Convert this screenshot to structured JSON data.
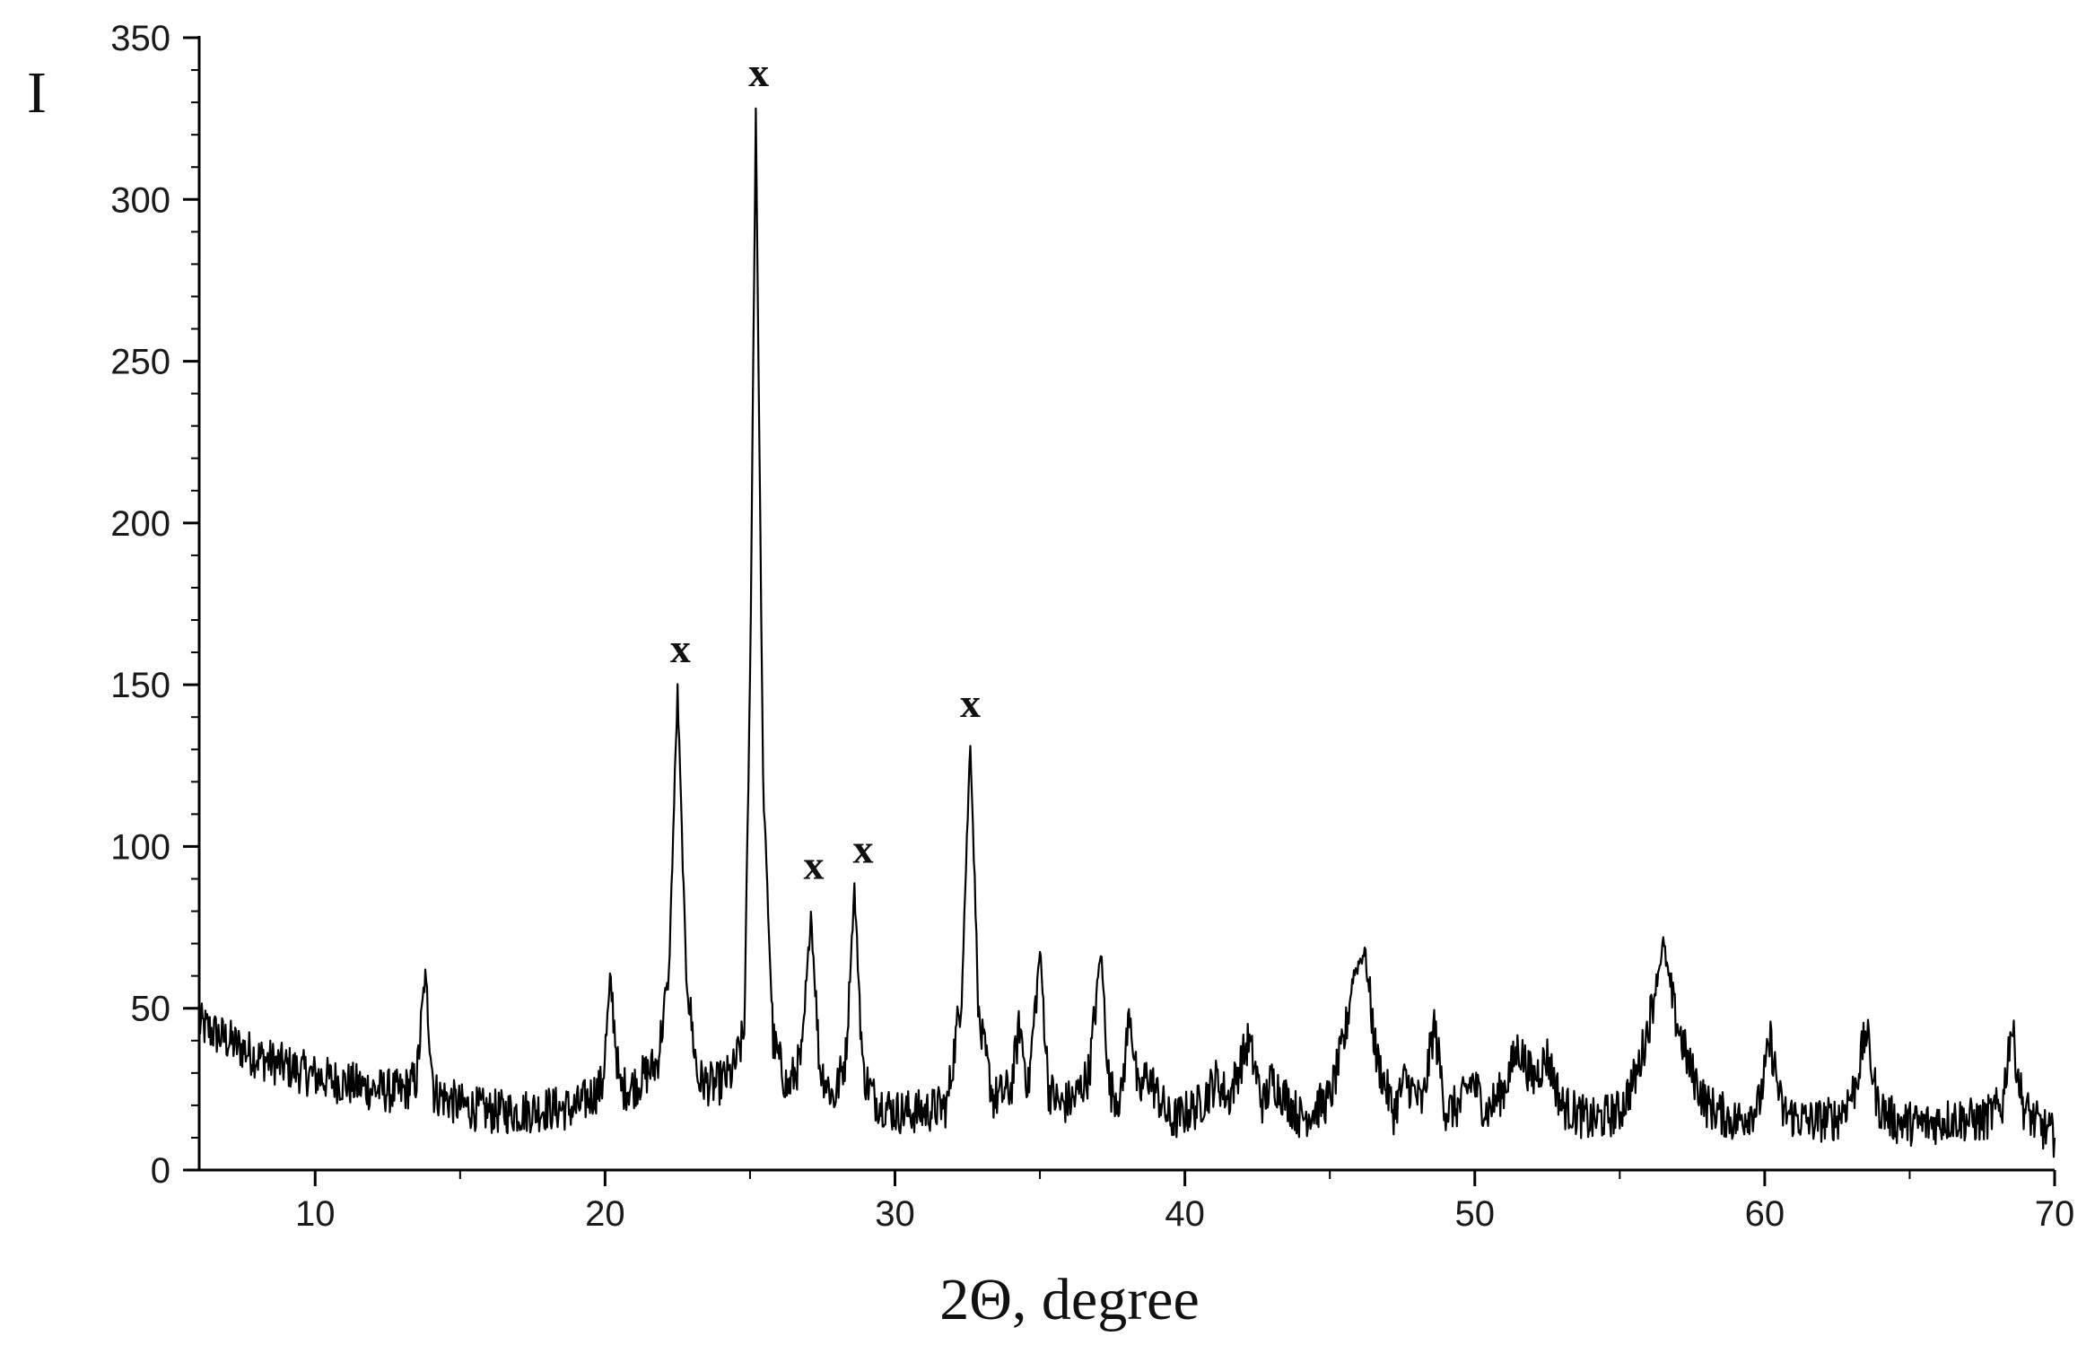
{
  "chart_data": {
    "type": "line",
    "title": "",
    "xlabel": "2Θ, degree",
    "ylabel": "I",
    "xlim": [
      6,
      70
    ],
    "ylim": [
      0,
      350
    ],
    "x_ticks": [
      10,
      20,
      30,
      40,
      50,
      60,
      70
    ],
    "x_tick_labels": [
      "10",
      "20",
      "30",
      "40",
      "50",
      "60",
      "70"
    ],
    "y_ticks": [
      0,
      50,
      100,
      150,
      200,
      250,
      300,
      350
    ],
    "y_tick_labels": [
      "0",
      "50",
      "100",
      "150",
      "200",
      "250",
      "300",
      "350"
    ],
    "grid": false,
    "legend": "none",
    "line_color": "#000000",
    "series": [
      {
        "x": [
          6.0,
          7.0,
          8.0,
          9.0,
          10.0,
          11.0,
          12.0,
          13.0,
          13.5,
          13.8,
          14.1,
          15.0,
          16.0,
          17.0,
          18.0,
          19.0,
          19.9,
          20.2,
          20.5,
          21.0,
          21.8,
          22.2,
          22.5,
          22.8,
          23.2,
          23.8,
          24.4,
          24.8,
          25.0,
          25.2,
          25.45,
          25.8,
          26.3,
          26.8,
          27.1,
          27.4,
          27.9,
          28.3,
          28.6,
          28.9,
          29.3,
          30.0,
          31.0,
          31.8,
          32.3,
          32.6,
          32.9,
          33.4,
          34.0,
          34.3,
          34.6,
          35.0,
          35.3,
          35.7,
          36.2,
          36.7,
          37.1,
          37.4,
          37.8,
          38.1,
          38.4,
          38.7,
          39.5,
          40.5,
          41.1,
          41.5,
          42.2,
          42.7,
          43.0,
          44.0,
          45.0,
          45.5,
          45.8,
          46.2,
          46.6,
          47.2,
          47.6,
          48.2,
          48.6,
          49.0,
          49.5,
          49.9,
          50.4,
          51.0,
          51.5,
          52.0,
          52.5,
          53.0,
          54.0,
          55.0,
          55.6,
          56.0,
          56.5,
          56.9,
          57.4,
          58.0,
          59.0,
          59.8,
          60.2,
          60.6,
          61.5,
          62.5,
          63.1,
          63.5,
          63.9,
          64.5,
          65.5,
          66.5,
          67.5,
          68.2,
          68.5,
          68.9,
          69.3,
          70.0
        ],
        "y": [
          45,
          40,
          35,
          32,
          29,
          27,
          25,
          24,
          28,
          60,
          24,
          20,
          18,
          18,
          19,
          19,
          26,
          58,
          25,
          26,
          33,
          60,
          148,
          60,
          28,
          26,
          30,
          42,
          150,
          328,
          120,
          40,
          25,
          35,
          80,
          32,
          22,
          35,
          87,
          30,
          22,
          18,
          18,
          20,
          55,
          133,
          45,
          22,
          25,
          45,
          25,
          68,
          25,
          20,
          22,
          30,
          68,
          25,
          22,
          50,
          22,
          30,
          15,
          20,
          28,
          22,
          40,
          20,
          28,
          16,
          22,
          40,
          60,
          68,
          35,
          18,
          28,
          20,
          45,
          18,
          20,
          28,
          18,
          25,
          38,
          28,
          35,
          20,
          15,
          18,
          30,
          45,
          70,
          48,
          32,
          20,
          15,
          20,
          40,
          18,
          15,
          16,
          25,
          43,
          20,
          15,
          14,
          16,
          15,
          20,
          45,
          20,
          15,
          10
        ]
      }
    ],
    "annotations": [
      {
        "text": "x",
        "x": 22.6,
        "y": 157
      },
      {
        "text": "x",
        "x": 25.3,
        "y": 335
      },
      {
        "text": "x",
        "x": 27.2,
        "y": 90
      },
      {
        "text": "x",
        "x": 28.9,
        "y": 95
      },
      {
        "text": "x",
        "x": 32.6,
        "y": 140
      }
    ]
  }
}
